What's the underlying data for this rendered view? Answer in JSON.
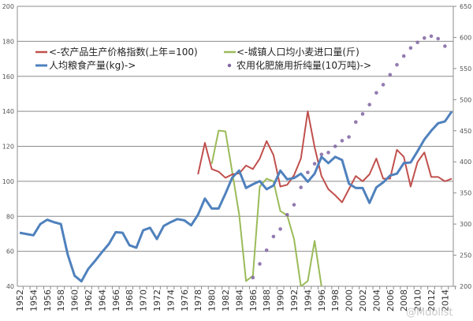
{
  "chart_data": {
    "type": "line",
    "title": "",
    "xlabel": "",
    "ylabel_left": "",
    "ylabel_right": "",
    "x_range": [
      1952,
      2015
    ],
    "x_tick_labels": [
      "1952",
      "1954",
      "1956",
      "1958",
      "1960",
      "1962",
      "1964",
      "1966",
      "1968",
      "1970",
      "1972",
      "1974",
      "1976",
      "1978",
      "1980",
      "1982",
      "1984",
      "1986",
      "1988",
      "1990",
      "1992",
      "1994",
      "1996",
      "1998",
      "2000",
      "2002",
      "2004",
      "2006",
      "2008",
      "2010",
      "2012",
      "2014"
    ],
    "ylim_left": [
      40,
      200
    ],
    "y_ticks_left": [
      40,
      60,
      80,
      100,
      120,
      140,
      160,
      180,
      200
    ],
    "ylim_right": [
      200,
      650
    ],
    "y_ticks_right": [
      200,
      250,
      300,
      350,
      400,
      450,
      500,
      550,
      600,
      650
    ],
    "grid": true,
    "legend_position": "top-left",
    "series": [
      {
        "name": "<-农产品生产价格指数(上年=100)",
        "axis": "left",
        "style": "line",
        "color": "#c0504d",
        "start_year": 1978,
        "values": [
          104,
          122,
          107,
          105.5,
          102,
          104,
          104.5,
          109,
          107,
          113,
          123,
          115,
          97,
          98,
          103.5,
          113,
          140,
          119.5,
          103,
          95.5,
          92,
          88,
          95.5,
          103,
          100,
          104,
          113,
          101.5,
          101.5,
          118,
          114,
          97,
          111,
          116.5,
          102.5,
          102.5,
          100,
          101.5
        ]
      },
      {
        "name": "<-城镇人口均小麦进口量(斤)",
        "axis": "left",
        "style": "line",
        "color": "#9bbb59",
        "start_year": 1980,
        "values": [
          110,
          129,
          128.5,
          105,
          81,
          43,
          46,
          97,
          101.5,
          100,
          83,
          80.5,
          67,
          40,
          43,
          66,
          40
        ]
      },
      {
        "name": "人均粮食产量(kg)->",
        "axis": "right",
        "style": "line",
        "color": "#4f81bd",
        "start_year": 1952,
        "values": [
          286,
          284,
          282,
          300,
          307,
          303,
          300,
          251,
          217,
          208,
          228,
          241,
          255,
          268,
          287,
          286,
          266,
          262,
          290,
          294,
          276,
          297,
          303,
          308,
          306,
          298,
          315,
          341,
          325,
          325,
          349,
          375,
          386,
          358,
          364,
          369,
          356,
          362,
          386,
          372,
          374,
          381,
          368,
          381,
          408,
          398,
          408,
          403,
          365,
          358,
          358,
          334,
          359,
          367,
          378,
          381,
          398,
          399,
          417,
          436,
          450,
          462,
          465,
          481
        ]
      },
      {
        "name": "农用化肥施用折纯量(10万吨)->",
        "axis": "right",
        "style": "markers",
        "color": "#8064a2",
        "start_year": 1986,
        "values": [
          214,
          236,
          258,
          280,
          292,
          315,
          331,
          359,
          383,
          397,
          412,
          415,
          425,
          434,
          440,
          464,
          477,
          492,
          511,
          524,
          540,
          556,
          570,
          583,
          592,
          599,
          602,
          598,
          586
        ]
      }
    ]
  },
  "watermark": "@Mdolist"
}
